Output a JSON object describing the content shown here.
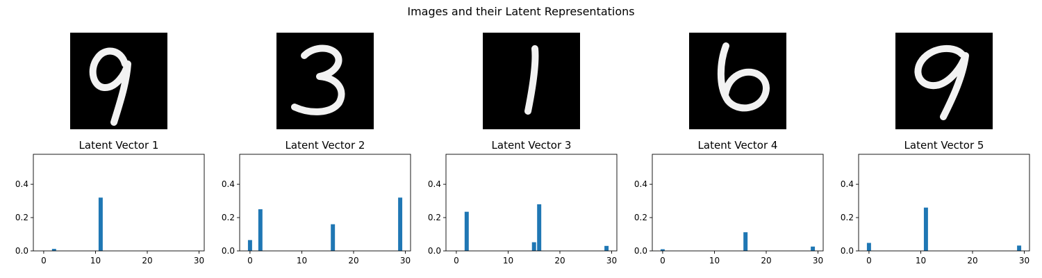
{
  "figure": {
    "title": "Images and their Latent Representations"
  },
  "images": [
    {
      "digit": "9"
    },
    {
      "digit": "3"
    },
    {
      "digit": "1"
    },
    {
      "digit": "6"
    },
    {
      "digit": "9"
    }
  ],
  "chart_data": [
    {
      "type": "bar",
      "title": "Latent Vector 1",
      "x": [
        2,
        11
      ],
      "values": [
        0.012,
        0.32
      ],
      "xlim": [
        -2,
        31
      ],
      "ylim": [
        0,
        0.58
      ],
      "xticks": [
        0,
        10,
        20,
        30
      ],
      "yticks": [
        0.0,
        0.2,
        0.4
      ],
      "color": "#1f77b4",
      "grid": false
    },
    {
      "type": "bar",
      "title": "Latent Vector 2",
      "x": [
        0,
        2,
        16,
        29
      ],
      "values": [
        0.065,
        0.25,
        0.16,
        0.32
      ],
      "xlim": [
        -2,
        31
      ],
      "ylim": [
        0,
        0.58
      ],
      "xticks": [
        0,
        10,
        20,
        30
      ],
      "yticks": [
        0.0,
        0.2,
        0.4
      ],
      "color": "#1f77b4",
      "grid": false
    },
    {
      "type": "bar",
      "title": "Latent Vector 3",
      "x": [
        2,
        15,
        16,
        29
      ],
      "values": [
        0.235,
        0.052,
        0.28,
        0.03
      ],
      "xlim": [
        -2,
        31
      ],
      "ylim": [
        0,
        0.58
      ],
      "xticks": [
        0,
        10,
        20,
        30
      ],
      "yticks": [
        0.0,
        0.2,
        0.4
      ],
      "color": "#1f77b4",
      "grid": false
    },
    {
      "type": "bar",
      "title": "Latent Vector 4",
      "x": [
        0,
        16,
        29
      ],
      "values": [
        0.01,
        0.112,
        0.026
      ],
      "xlim": [
        -2,
        31
      ],
      "ylim": [
        0,
        0.58
      ],
      "xticks": [
        0,
        10,
        20,
        30
      ],
      "yticks": [
        0.0,
        0.2,
        0.4
      ],
      "color": "#1f77b4",
      "grid": false
    },
    {
      "type": "bar",
      "title": "Latent Vector 5",
      "x": [
        0,
        11,
        29
      ],
      "values": [
        0.048,
        0.26,
        0.032
      ],
      "xlim": [
        -2,
        31
      ],
      "ylim": [
        0,
        0.58
      ],
      "xticks": [
        0,
        10,
        20,
        30
      ],
      "yticks": [
        0.0,
        0.2,
        0.4
      ],
      "color": "#1f77b4",
      "grid": false
    }
  ]
}
